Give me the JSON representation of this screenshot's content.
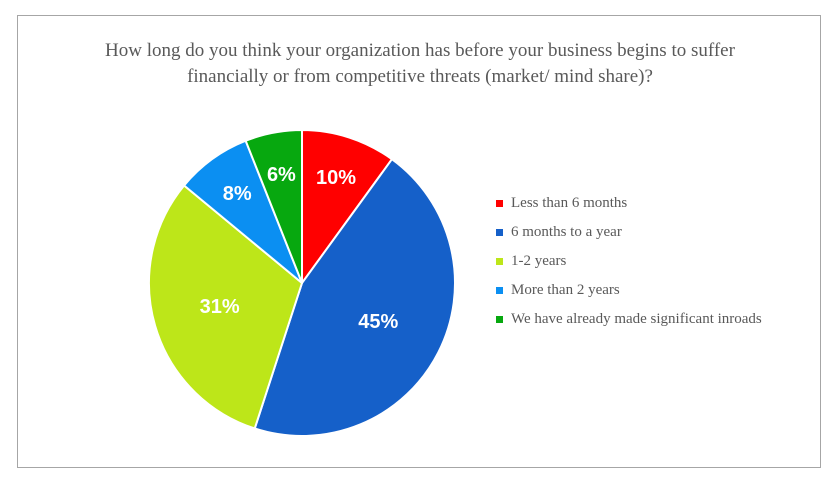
{
  "chart_data": {
    "type": "pie",
    "title_lines": [
      "How long do you think your organization has before your business begins to suffer",
      "financially or from competitive threats (market/ mind share)?"
    ],
    "slices": [
      {
        "label": "Less than 6 months",
        "value": 10,
        "display": "10%",
        "color": "#ff0000"
      },
      {
        "label": "6 months to a year",
        "value": 45,
        "display": "45%",
        "color": "#1560c9"
      },
      {
        "label": "1-2 years",
        "value": 31,
        "display": "31%",
        "color": "#bde619"
      },
      {
        "label": "More than 2 years",
        "value": 8,
        "display": "8%",
        "color": "#0b8ff2"
      },
      {
        "label": "We have already made significant inroads",
        "value": 6,
        "display": "6%",
        "color": "#07a80f"
      }
    ],
    "legend_position": "right"
  }
}
